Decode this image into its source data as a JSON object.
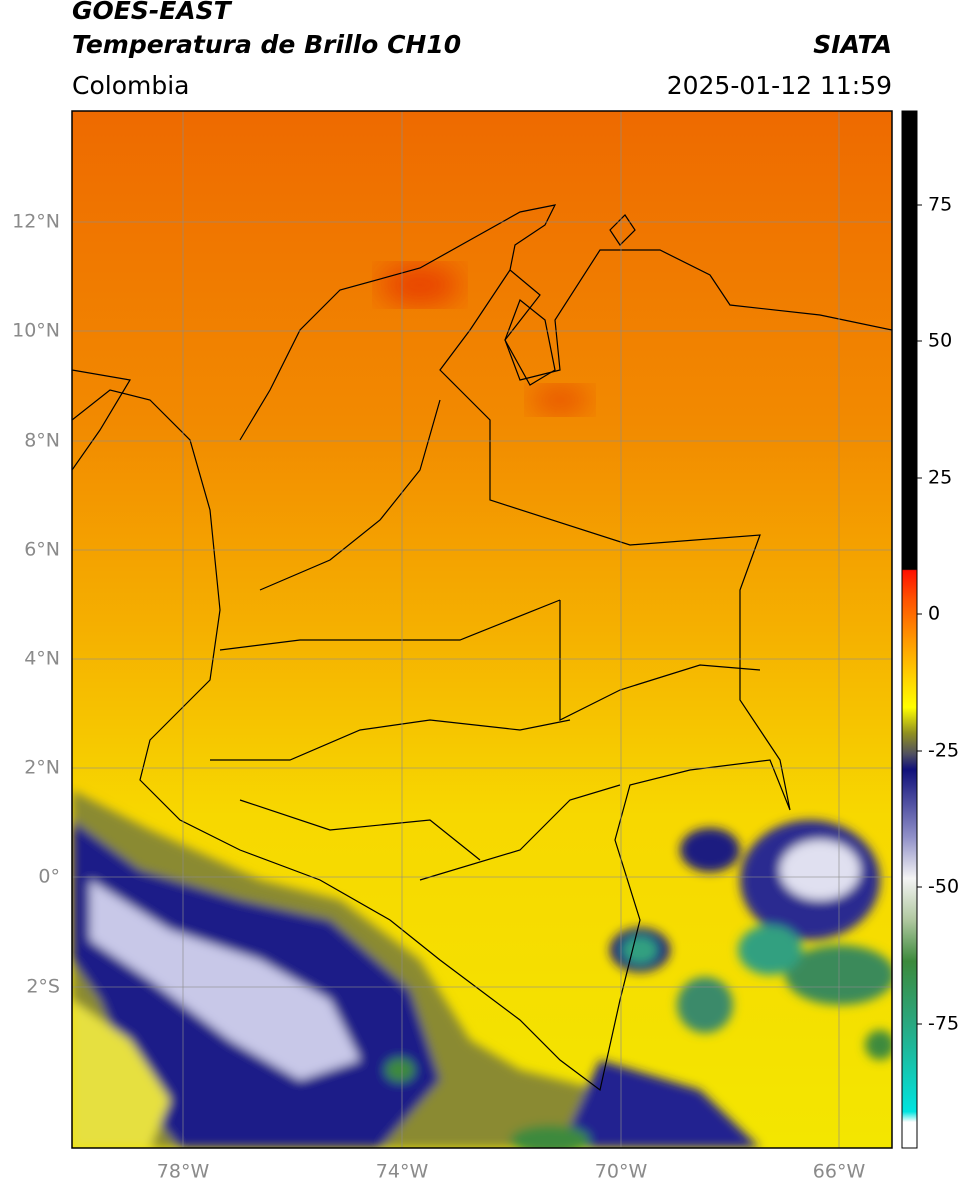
{
  "header": {
    "title": "GOES-EAST",
    "subtitle": "Temperatura de Brillo CH10",
    "source": "SIATA",
    "region": "Colombia",
    "timestamp": "2025-01-12 11:59"
  },
  "map": {
    "lat_labels": [
      "12°N",
      "10°N",
      "8°N",
      "6°N",
      "4°N",
      "2°N",
      "0°",
      "2°S"
    ],
    "lon_labels": [
      "78°W",
      "74°W",
      "70°W",
      "66°W"
    ]
  },
  "colorbar": {
    "ticks": [
      75,
      50,
      25,
      0,
      -25,
      -50,
      -75
    ]
  }
}
